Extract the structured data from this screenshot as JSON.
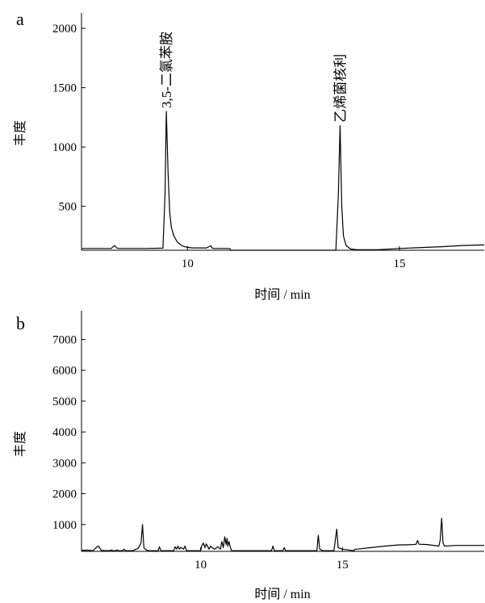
{
  "chart_data": [
    {
      "panel": "a",
      "type": "line",
      "xlabel": "时间 / min",
      "ylabel": "丰度",
      "xlim": [
        7.5,
        17.0
      ],
      "ylim": [
        130,
        2130
      ],
      "xticks": [
        10,
        15
      ],
      "yticks": [
        500,
        1000,
        1500,
        2000
      ],
      "annotations": [
        {
          "text": "3,5-二氯苯胺",
          "x": 9.5,
          "y": 1300
        },
        {
          "text": "乙烯菌核利",
          "x": 13.6,
          "y": 1180
        }
      ],
      "series": [
        {
          "x": [
            7.5,
            8.0,
            8.2,
            8.28,
            8.33,
            8.38,
            8.5,
            9.0,
            9.42,
            9.47,
            9.5,
            9.54,
            9.58,
            9.62,
            9.68,
            9.76,
            9.86,
            9.95,
            10.1,
            10.45,
            10.55,
            10.58,
            10.62,
            10.7,
            11.0,
            11.02,
            13.5,
            13.56,
            13.6,
            13.64,
            13.68,
            13.74,
            13.85,
            14.0,
            14.5,
            15.0,
            16.0,
            16.5,
            17.0
          ],
          "y": [
            145,
            145,
            145,
            170,
            150,
            145,
            145,
            145,
            148,
            600,
            1300,
            800,
            450,
            320,
            250,
            200,
            170,
            158,
            150,
            150,
            168,
            150,
            145,
            145,
            145,
            130,
            130,
            600,
            1180,
            500,
            250,
            170,
            140,
            135,
            135,
            145,
            160,
            170,
            175
          ]
        }
      ]
    },
    {
      "panel": "b",
      "type": "line",
      "xlabel": "时间 / min",
      "ylabel": "丰度",
      "xlim": [
        5.8,
        20.0
      ],
      "ylim": [
        130,
        7930
      ],
      "xticks": [
        10,
        15
      ],
      "yticks": [
        1000,
        2000,
        3000,
        4000,
        5000,
        6000,
        7000
      ],
      "series": [
        {
          "x": [
            5.8,
            6.0,
            6.1,
            6.2,
            6.35,
            6.4,
            6.5,
            6.8,
            6.85,
            6.9,
            7.0,
            7.05,
            7.1,
            7.25,
            7.3,
            7.35,
            7.6,
            7.8,
            7.9,
            7.95,
            8.0,
            8.05,
            8.15,
            8.5,
            8.55,
            8.6,
            9.05,
            9.1,
            9.15,
            9.2,
            9.25,
            9.3,
            9.4,
            9.45,
            9.5,
            10.0,
            10.05,
            10.1,
            10.15,
            10.2,
            10.3,
            10.35,
            10.4,
            10.5,
            10.6,
            10.7,
            10.75,
            10.8,
            10.85,
            10.9,
            10.93,
            10.96,
            11.0,
            11.05,
            11.1,
            12.5,
            12.55,
            12.6,
            12.9,
            12.95,
            13.0,
            14.1,
            14.15,
            14.2,
            14.3,
            14.4,
            14.7,
            14.75,
            14.8,
            14.85,
            15.0,
            15.4,
            15.45,
            15.5,
            16.0,
            16.5,
            17.0,
            17.2,
            17.5,
            17.6,
            17.65,
            17.7,
            18.0,
            18.4,
            18.45,
            18.5,
            18.55,
            18.6,
            19.0,
            20.0
          ],
          "y": [
            160,
            170,
            160,
            150,
            280,
            300,
            160,
            150,
            175,
            150,
            150,
            180,
            150,
            150,
            200,
            150,
            150,
            230,
            400,
            1000,
            250,
            200,
            150,
            150,
            280,
            150,
            150,
            280,
            200,
            300,
            200,
            260,
            200,
            300,
            150,
            150,
            330,
            400,
            250,
            370,
            200,
            300,
            250,
            200,
            280,
            200,
            450,
            250,
            600,
            350,
            550,
            300,
            450,
            250,
            150,
            150,
            300,
            150,
            150,
            250,
            150,
            150,
            650,
            200,
            150,
            150,
            150,
            500,
            850,
            250,
            200,
            150,
            200,
            200,
            250,
            300,
            340,
            340,
            350,
            360,
            480,
            360,
            350,
            300,
            500,
            1200,
            400,
            300,
            320,
            320
          ]
        }
      ]
    }
  ],
  "panel_labels": [
    "a",
    "b"
  ]
}
